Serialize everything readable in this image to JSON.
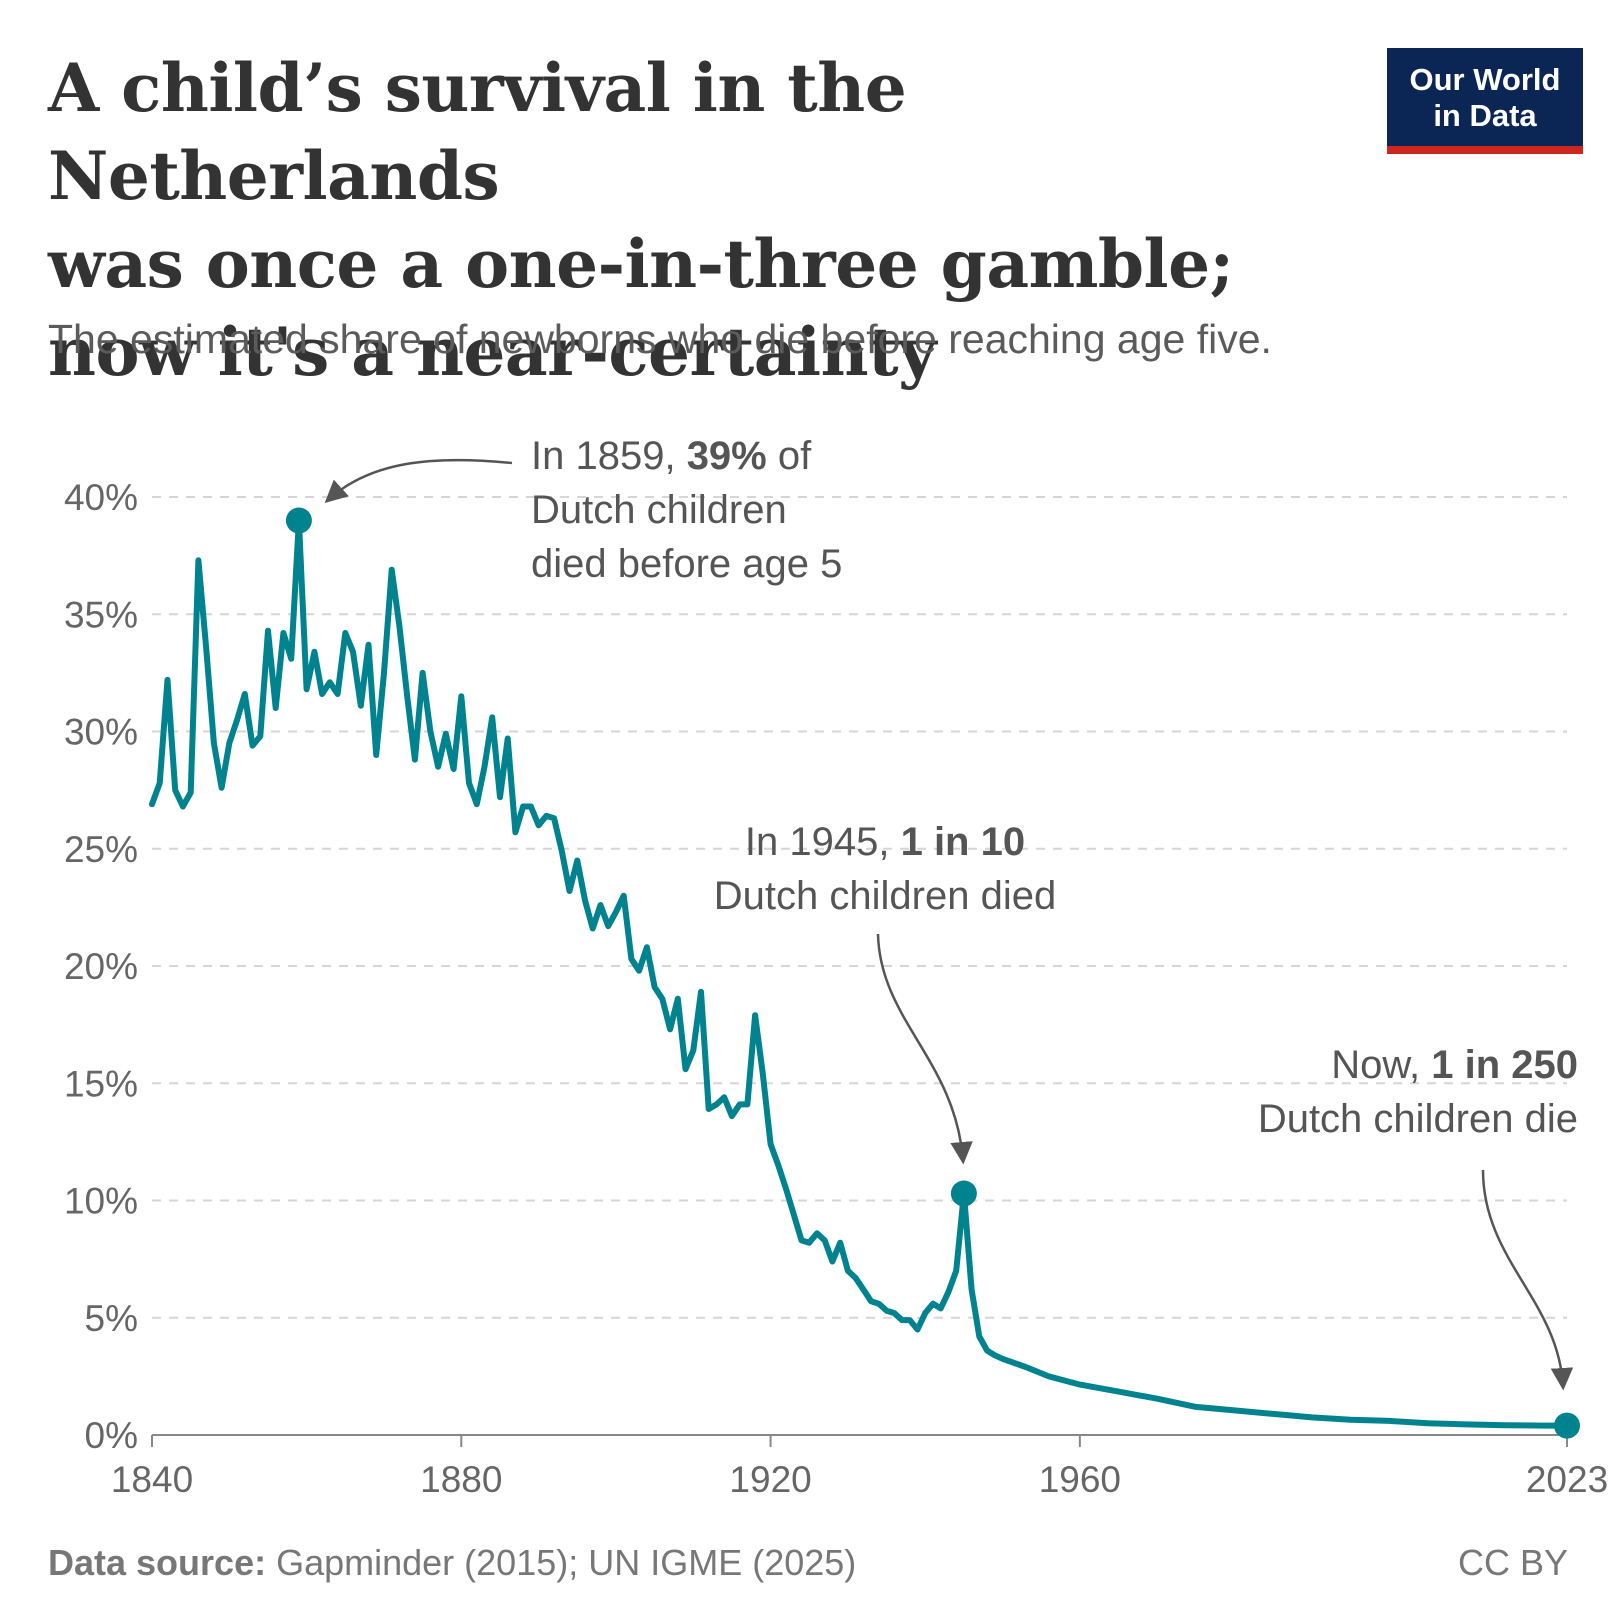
{
  "header": {
    "title_lines": [
      "A child’s survival in the Netherlands",
      "was once a one-in-three gamble;",
      "now it's a near-certainty"
    ],
    "subtitle": "The estimated share of newborns who die before reaching age five."
  },
  "logo": {
    "line1": "Our World",
    "line2": "in Data",
    "bg_color": "#0b2655",
    "stripe_color": "#ce261e"
  },
  "annotations": {
    "peak": {
      "pre": "In 1859, ",
      "bold": "39%",
      "post": " of",
      "line2": "Dutch children",
      "line3": "died before age 5"
    },
    "war": {
      "pre": "In 1945, ",
      "bold": "1 in 10",
      "line2": "Dutch children died"
    },
    "now": {
      "pre": "Now, ",
      "bold": "1 in 250",
      "line2": "Dutch children die"
    }
  },
  "footer": {
    "source_label": "Data source:",
    "source_text": " Gapminder (2015); UN IGME (2025)",
    "license": "CC BY"
  },
  "chart_data": {
    "type": "line",
    "title": "A child’s survival in the Netherlands was once a one-in-three gamble; now it's a near-certainty",
    "xlabel": "",
    "ylabel": "",
    "xlim": [
      1840,
      2023
    ],
    "ylim": [
      0,
      40
    ],
    "x_ticks": [
      1840,
      1880,
      1920,
      1960,
      2023
    ],
    "y_ticks": [
      0,
      5,
      10,
      15,
      20,
      25,
      30,
      35,
      40
    ],
    "y_tick_suffix": "%",
    "grid": "horizontal dashed",
    "line_color": "#00838f",
    "series": [
      {
        "name": "Netherlands",
        "points": [
          [
            1840,
            26.9
          ],
          [
            1841,
            27.8
          ],
          [
            1842,
            32.2
          ],
          [
            1843,
            27.5
          ],
          [
            1844,
            26.8
          ],
          [
            1845,
            27.4
          ],
          [
            1846,
            37.3
          ],
          [
            1847,
            33.6
          ],
          [
            1848,
            29.5
          ],
          [
            1849,
            27.6
          ],
          [
            1850,
            29.5
          ],
          [
            1851,
            30.5
          ],
          [
            1852,
            31.6
          ],
          [
            1853,
            29.4
          ],
          [
            1854,
            29.8
          ],
          [
            1855,
            34.3
          ],
          [
            1856,
            31.0
          ],
          [
            1857,
            34.2
          ],
          [
            1858,
            33.1
          ],
          [
            1859,
            39.0
          ],
          [
            1860,
            31.8
          ],
          [
            1861,
            33.4
          ],
          [
            1862,
            31.6
          ],
          [
            1863,
            32.1
          ],
          [
            1864,
            31.6
          ],
          [
            1865,
            34.2
          ],
          [
            1866,
            33.4
          ],
          [
            1867,
            31.1
          ],
          [
            1868,
            33.7
          ],
          [
            1869,
            29.0
          ],
          [
            1870,
            32.5
          ],
          [
            1871,
            36.9
          ],
          [
            1872,
            34.5
          ],
          [
            1873,
            31.5
          ],
          [
            1874,
            28.8
          ],
          [
            1875,
            32.5
          ],
          [
            1876,
            30.0
          ],
          [
            1877,
            28.5
          ],
          [
            1878,
            29.9
          ],
          [
            1879,
            28.4
          ],
          [
            1880,
            31.5
          ],
          [
            1881,
            27.8
          ],
          [
            1882,
            26.9
          ],
          [
            1883,
            28.5
          ],
          [
            1884,
            30.6
          ],
          [
            1885,
            27.2
          ],
          [
            1886,
            29.7
          ],
          [
            1887,
            25.7
          ],
          [
            1888,
            26.8
          ],
          [
            1889,
            26.8
          ],
          [
            1890,
            26.0
          ],
          [
            1891,
            26.4
          ],
          [
            1892,
            26.3
          ],
          [
            1893,
            24.9
          ],
          [
            1894,
            23.2
          ],
          [
            1895,
            24.5
          ],
          [
            1896,
            22.8
          ],
          [
            1897,
            21.6
          ],
          [
            1898,
            22.6
          ],
          [
            1899,
            21.7
          ],
          [
            1900,
            22.3
          ],
          [
            1901,
            23.0
          ],
          [
            1902,
            20.3
          ],
          [
            1903,
            19.8
          ],
          [
            1904,
            20.8
          ],
          [
            1905,
            19.1
          ],
          [
            1906,
            18.6
          ],
          [
            1907,
            17.3
          ],
          [
            1908,
            18.6
          ],
          [
            1909,
            15.6
          ],
          [
            1910,
            16.4
          ],
          [
            1911,
            18.9
          ],
          [
            1912,
            13.9
          ],
          [
            1913,
            14.1
          ],
          [
            1914,
            14.4
          ],
          [
            1915,
            13.6
          ],
          [
            1916,
            14.1
          ],
          [
            1917,
            14.1
          ],
          [
            1918,
            17.9
          ],
          [
            1919,
            15.4
          ],
          [
            1920,
            12.4
          ],
          [
            1921,
            11.5
          ],
          [
            1922,
            10.5
          ],
          [
            1923,
            9.4
          ],
          [
            1924,
            8.3
          ],
          [
            1925,
            8.2
          ],
          [
            1926,
            8.6
          ],
          [
            1927,
            8.3
          ],
          [
            1928,
            7.4
          ],
          [
            1929,
            8.2
          ],
          [
            1930,
            7.0
          ],
          [
            1931,
            6.7
          ],
          [
            1932,
            6.2
          ],
          [
            1933,
            5.7
          ],
          [
            1934,
            5.6
          ],
          [
            1935,
            5.3
          ],
          [
            1936,
            5.2
          ],
          [
            1937,
            4.9
          ],
          [
            1938,
            4.9
          ],
          [
            1939,
            4.5
          ],
          [
            1940,
            5.2
          ],
          [
            1941,
            5.6
          ],
          [
            1942,
            5.4
          ],
          [
            1943,
            6.1
          ],
          [
            1944,
            7.0
          ],
          [
            1945,
            10.3
          ],
          [
            1946,
            6.2
          ],
          [
            1947,
            4.2
          ],
          [
            1948,
            3.6
          ],
          [
            1949,
            3.4
          ],
          [
            1950,
            3.25
          ],
          [
            1953,
            2.9
          ],
          [
            1956,
            2.5
          ],
          [
            1960,
            2.15
          ],
          [
            1965,
            1.85
          ],
          [
            1970,
            1.55
          ],
          [
            1975,
            1.2
          ],
          [
            1980,
            1.05
          ],
          [
            1985,
            0.9
          ],
          [
            1990,
            0.75
          ],
          [
            1995,
            0.65
          ],
          [
            2000,
            0.6
          ],
          [
            2005,
            0.5
          ],
          [
            2010,
            0.45
          ],
          [
            2015,
            0.42
          ],
          [
            2020,
            0.4
          ],
          [
            2023,
            0.4
          ]
        ]
      }
    ],
    "highlighted_points": [
      {
        "x": 1859,
        "y": 39.0,
        "label": "In 1859, 39% of Dutch children died before age 5"
      },
      {
        "x": 1945,
        "y": 10.3,
        "label": "In 1945, 1 in 10 Dutch children died"
      },
      {
        "x": 2023,
        "y": 0.4,
        "label": "Now, 1 in 250 Dutch children die"
      }
    ]
  }
}
